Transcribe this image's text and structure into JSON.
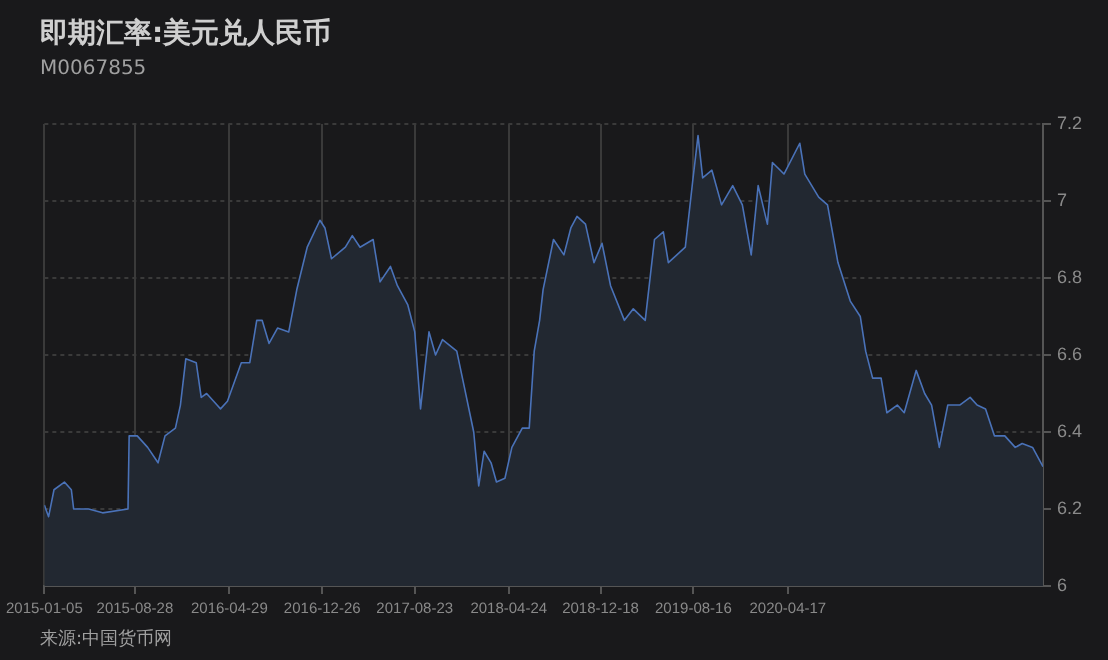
{
  "chart_data": {
    "type": "area",
    "title": "即期汇率:美元兑人民币",
    "subtitle": "M0067855",
    "annotations": [
      "来源:中国货币网"
    ],
    "x": [
      "2015-01-05",
      "2015-01-16",
      "2015-01-30",
      "2015-02-26",
      "2015-03-16",
      "2015-03-22",
      "2015-04-30",
      "2015-06-05",
      "2015-08-10",
      "2015-08-13",
      "2015-09-03",
      "2015-09-30",
      "2015-10-27",
      "2015-11-14",
      "2015-12-11",
      "2015-12-24",
      "2016-01-07",
      "2016-02-03",
      "2016-02-16",
      "2016-03-01",
      "2016-03-28",
      "2016-04-06",
      "2016-04-24",
      "2016-05-30",
      "2016-06-21",
      "2016-07-09",
      "2016-07-23",
      "2016-08-10",
      "2016-09-01",
      "2016-09-30",
      "2016-10-21",
      "2016-11-17",
      "2016-12-20",
      "2017-01-02",
      "2017-01-19",
      "2017-02-24",
      "2017-03-14",
      "2017-04-03",
      "2017-05-07",
      "2017-05-25",
      "2017-06-21",
      "2017-07-09",
      "2017-08-05",
      "2017-08-23",
      "2017-09-07",
      "2017-09-29",
      "2017-10-16",
      "2017-11-03",
      "2017-12-10",
      "2017-12-29",
      "2018-01-23",
      "2018-02-05",
      "2018-02-19",
      "2018-03-09",
      "2018-03-23",
      "2018-04-14",
      "2018-05-02",
      "2018-05-29",
      "2018-06-16",
      "2018-06-29",
      "2018-07-13",
      "2018-07-22",
      "2018-08-18",
      "2018-09-14",
      "2018-10-02",
      "2018-10-18",
      "2018-11-09",
      "2018-12-01",
      "2018-12-22",
      "2019-01-13",
      "2019-02-18",
      "2019-03-13",
      "2019-04-13",
      "2019-05-07",
      "2019-05-30",
      "2019-06-12",
      "2019-07-26",
      "2019-08-14",
      "2019-08-28",
      "2019-09-09",
      "2019-10-03",
      "2019-10-28",
      "2019-11-26",
      "2019-12-21",
      "2020-01-13",
      "2020-01-31",
      "2020-02-24",
      "2020-03-08",
      "2020-04-07",
      "2020-05-18",
      "2020-05-31",
      "2020-07-06",
      "2020-07-29",
      "2020-08-25",
      "2020-09-26",
      "2020-10-22",
      "2020-11-05",
      "2020-11-23",
      "2020-12-15",
      "2020-12-30",
      "2021-01-26",
      "2021-02-13",
      "2021-03-16",
      "2021-04-07",
      "2021-04-25",
      "2021-05-15",
      "2021-06-06",
      "2021-07-07",
      "2021-08-03",
      "2021-08-21",
      "2021-09-12",
      "2021-10-05",
      "2021-11-01",
      "2021-11-28",
      "2021-12-16",
      "2022-01-12",
      "2022-02-08"
    ],
    "series": [
      {
        "color": "#4a72b8",
        "values": [
          6.21,
          6.18,
          6.25,
          6.27,
          6.25,
          6.2,
          6.2,
          6.19,
          6.2,
          6.39,
          6.39,
          6.36,
          6.32,
          6.39,
          6.41,
          6.47,
          6.59,
          6.58,
          6.49,
          6.5,
          6.47,
          6.46,
          6.48,
          6.58,
          6.58,
          6.69,
          6.69,
          6.63,
          6.67,
          6.66,
          6.77,
          6.88,
          6.95,
          6.93,
          6.85,
          6.88,
          6.91,
          6.88,
          6.9,
          6.79,
          6.83,
          6.78,
          6.73,
          6.66,
          6.46,
          6.66,
          6.6,
          6.64,
          6.61,
          6.52,
          6.4,
          6.26,
          6.35,
          6.32,
          6.27,
          6.28,
          6.36,
          6.41,
          6.41,
          6.61,
          6.69,
          6.77,
          6.9,
          6.86,
          6.93,
          6.96,
          6.94,
          6.84,
          6.89,
          6.78,
          6.69,
          6.72,
          6.69,
          6.9,
          6.92,
          6.84,
          6.88,
          7.05,
          7.17,
          7.06,
          7.08,
          6.99,
          7.04,
          6.99,
          6.86,
          7.04,
          6.94,
          7.1,
          7.07,
          7.15,
          7.07,
          7.01,
          6.99,
          6.84,
          6.74,
          6.7,
          6.61,
          6.54,
          6.54,
          6.45,
          6.47,
          6.45,
          6.56,
          6.5,
          6.47,
          6.36,
          6.47,
          6.47,
          6.49,
          6.47,
          6.46,
          6.39,
          6.39,
          6.36,
          6.37,
          6.36,
          6.31
        ]
      }
    ],
    "xlim": [
      "2015-01-05",
      "2022-02-08"
    ],
    "xticks": [
      "2015-01-05",
      "2015-08-28",
      "2016-04-29",
      "2016-12-26",
      "2017-08-23",
      "2018-04-24",
      "2018-12-18",
      "2019-08-16",
      "2020-04-17"
    ],
    "ylim": [
      6,
      7.2
    ],
    "yticks": [
      6,
      6.2,
      6.4,
      6.6,
      6.8,
      7,
      7.2
    ],
    "grid": true,
    "legend": false,
    "marker": "none",
    "line_style": "solid"
  }
}
